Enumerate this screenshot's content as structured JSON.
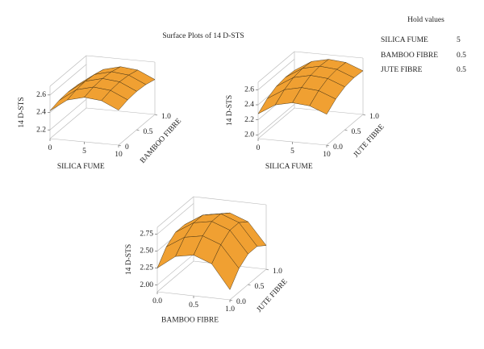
{
  "title": "Surface Plots of 14 D-STS",
  "hold_values": {
    "title": "Hold values",
    "rows": [
      [
        "SILICA FUME",
        5
      ],
      [
        "BAMBOO FIBRE",
        0.5
      ],
      [
        "JUTE FIBRE",
        0.5
      ]
    ]
  },
  "chart_data": [
    {
      "type": "surface",
      "x_label": "SILICA FUME",
      "y_label": "BAMBOO FIBRE",
      "z_label": "14 D-STS",
      "color": "#f0a032",
      "xlim": [
        0,
        10
      ],
      "xticks": [
        0,
        5,
        10
      ],
      "ylim": [
        0,
        1
      ],
      "yticks": [
        0,
        0.5,
        {
          "value": 1,
          "label": "1.0"
        }
      ],
      "zlim": [
        2.1,
        2.7
      ],
      "zticks": [
        2.2,
        2.4,
        2.6
      ],
      "x": [
        0,
        2.5,
        5,
        7.5,
        10
      ],
      "y": [
        0,
        0.25,
        0.5,
        0.75,
        1
      ],
      "z": [
        [
          2.42,
          2.45,
          2.46,
          2.45,
          2.42
        ],
        [
          2.56,
          2.59,
          2.6,
          2.59,
          2.56
        ],
        [
          2.61,
          2.64,
          2.65,
          2.64,
          2.61
        ],
        [
          2.59,
          2.62,
          2.63,
          2.62,
          2.59
        ],
        [
          2.5,
          2.53,
          2.54,
          2.53,
          2.5
        ]
      ]
    },
    {
      "type": "surface",
      "x_label": "SILICA FUME",
      "y_label": "JUTE FIBRE",
      "z_label": "14 D-STS",
      "color": "#f0a032",
      "xlim": [
        0,
        10
      ],
      "xticks": [
        0,
        5,
        10
      ],
      "ylim": [
        0,
        1
      ],
      "yticks": [
        {
          "value": 0,
          "label": "0.0"
        },
        0.5,
        {
          "value": 1,
          "label": "1.0"
        }
      ],
      "zlim": [
        1.95,
        2.7
      ],
      "zticks": [
        {
          "value": 2,
          "label": "2.0"
        },
        2.2,
        2.4,
        2.6
      ],
      "x": [
        0,
        2.5,
        5,
        7.5,
        10
      ],
      "y": [
        0,
        0.25,
        0.5,
        0.75,
        1
      ],
      "z": [
        [
          2.28,
          2.38,
          2.44,
          2.46,
          2.45
        ],
        [
          2.42,
          2.52,
          2.58,
          2.6,
          2.59
        ],
        [
          2.47,
          2.57,
          2.63,
          2.65,
          2.64
        ],
        [
          2.45,
          2.55,
          2.61,
          2.63,
          2.62
        ],
        [
          2.36,
          2.46,
          2.52,
          2.54,
          2.53
        ]
      ]
    },
    {
      "type": "surface",
      "x_label": "BAMBOO FIBRE",
      "y_label": "JUTE FIBRE",
      "z_label": "14 D-STS",
      "color": "#f0a032",
      "xlim": [
        0,
        1
      ],
      "xticks": [
        {
          "value": 0,
          "label": "0.0"
        },
        0.5,
        {
          "value": 1,
          "label": "1.0"
        }
      ],
      "ylim": [
        0,
        1
      ],
      "yticks": [
        {
          "value": 0,
          "label": "0.0"
        },
        0.5,
        {
          "value": 1,
          "label": "1.0"
        }
      ],
      "zlim": [
        1.9,
        2.85
      ],
      "zticks": [
        {
          "value": 2,
          "label": "2.00"
        },
        2.25,
        {
          "value": 2.5,
          "label": "2.50"
        },
        2.75
      ],
      "x": [
        0,
        0.25,
        0.5,
        0.75,
        1
      ],
      "y": [
        0,
        0.25,
        0.5,
        0.75,
        1
      ],
      "z": [
        [
          2.25,
          2.45,
          2.55,
          2.55,
          2.45
        ],
        [
          2.45,
          2.62,
          2.72,
          2.72,
          2.62
        ],
        [
          2.5,
          2.67,
          2.77,
          2.77,
          2.67
        ],
        [
          2.4,
          2.57,
          2.67,
          2.67,
          2.57
        ],
        [
          2.05,
          2.25,
          2.35,
          2.35,
          2.25
        ]
      ]
    }
  ]
}
